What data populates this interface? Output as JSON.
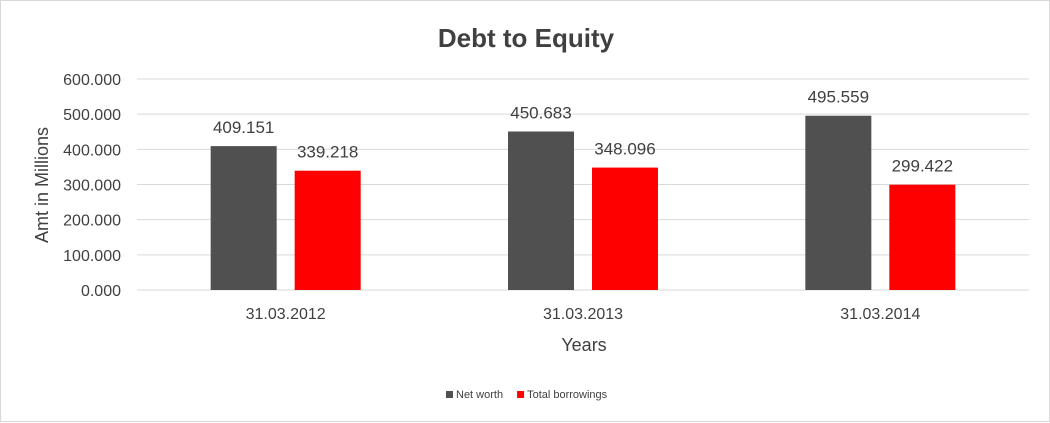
{
  "chart_data": {
    "type": "bar",
    "title": "Debt to Equity",
    "xlabel": "Years",
    "ylabel": "Amt in Millions",
    "categories": [
      "31.03.2012",
      "31.03.2013",
      "31.03.2014"
    ],
    "series": [
      {
        "name": "Net worth",
        "color": "#505050",
        "values": [
          409.151,
          450.683,
          495.559
        ],
        "labels": [
          "409.151",
          "450.683",
          "495.559"
        ]
      },
      {
        "name": "Total borrowings",
        "color": "#ff0000",
        "values": [
          339.218,
          348.096,
          299.422
        ],
        "labels": [
          "339.218",
          "348.096",
          "299.422"
        ]
      }
    ],
    "ylim": [
      0,
      600
    ],
    "yticks": [
      0,
      100,
      200,
      300,
      400,
      500,
      600
    ],
    "ytick_labels": [
      "0.000",
      "100.000",
      "200.000",
      "300.000",
      "400.000",
      "500.000",
      "600.000"
    ],
    "grid": true,
    "legend_position": "bottom"
  }
}
